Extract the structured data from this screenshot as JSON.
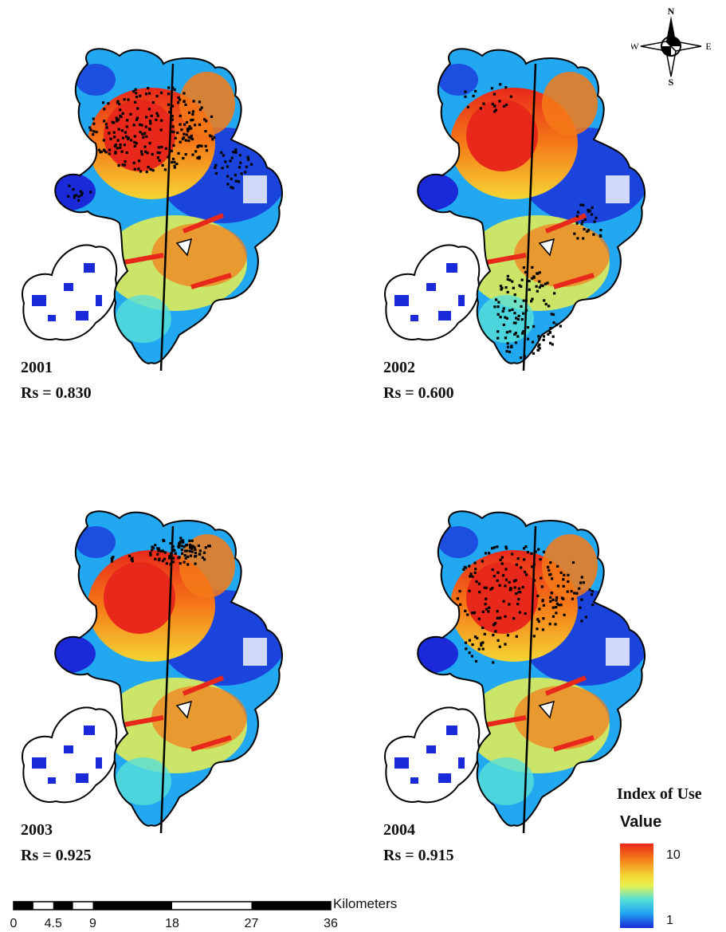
{
  "panels": [
    {
      "year": "2001",
      "rs": "Rs = 0.830",
      "points": "north"
    },
    {
      "year": "2002",
      "rs": "Rs = 0.600",
      "points": "south"
    },
    {
      "year": "2003",
      "rs": "Rs = 0.925",
      "points": "northeast"
    },
    {
      "year": "2004",
      "rs": "Rs = 0.915",
      "points": "center"
    }
  ],
  "legend": {
    "title": "Index of Use",
    "subtitle": "Value",
    "max_label": "10",
    "min_label": "1",
    "colors": [
      "#e8281a",
      "#f57a18",
      "#f5d534",
      "#e8f050",
      "#57e0d8",
      "#22a8f0",
      "#1a2ad8"
    ]
  },
  "scale": {
    "unit": "Kilometers",
    "ticks": [
      "0",
      "4.5",
      "9",
      "18",
      "27",
      "36"
    ],
    "tick_values": [
      0,
      4.5,
      9,
      18,
      27,
      36
    ]
  },
  "compass": {
    "n": "N",
    "s": "S",
    "e": "E",
    "w": "W"
  }
}
